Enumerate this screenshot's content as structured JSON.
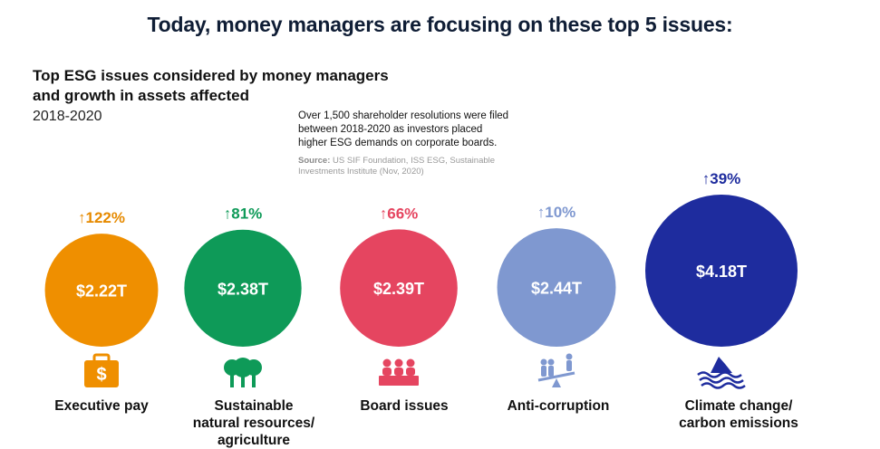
{
  "header": {
    "title": "Today, money managers are focusing on these top 5 issues:",
    "subtitle_line1": "Top ESG issues considered by money managers",
    "subtitle_line2": "and growth in assets affected",
    "years": "2018-2020",
    "note_line1": "Over 1,500 shareholder resolutions were filed",
    "note_line2": "between 2018-2020 as investors placed",
    "note_line3": "higher ESG demands on corporate boards.",
    "source_label": "Source:",
    "source_text": "US SIF Foundation, ISS ESG, Sustainable Investments Institute (Nov, 2020)"
  },
  "chart_data": {
    "type": "bubble",
    "title": "Top ESG issues considered by money managers and growth in assets affected",
    "period": "2018-2020",
    "unit": "assets affected (USD trillions)",
    "categories": [
      "Executive pay",
      "Sustainable natural resources/ agriculture",
      "Board issues",
      "Anti-corruption",
      "Climate change/ carbon emissions"
    ],
    "values": [
      2.22,
      2.38,
      2.39,
      2.44,
      4.18
    ],
    "value_labels": [
      "$2.22T",
      "$2.38T",
      "$2.39T",
      "$2.44T",
      "$4.18T"
    ],
    "growth": [
      "↑122%",
      "↑81%",
      "↑66%",
      "↑10%",
      "↑39%"
    ],
    "colors": [
      "#EF8F00",
      "#0E9A58",
      "#E54560",
      "#7F98D0",
      "#1E2C9E"
    ],
    "growth_colors": [
      "#E68A00",
      "#0E9A58",
      "#E54560",
      "#7F98D0",
      "#1E2C9E"
    ],
    "icons": [
      "briefcase-dollar-icon",
      "trees-icon",
      "board-members-icon",
      "scales-people-icon",
      "iceberg-waves-icon"
    ]
  },
  "labels": [
    {
      "line1": "Executive pay",
      "line2": "",
      "line3": ""
    },
    {
      "line1": "Sustainable",
      "line2": "natural resources/",
      "line3": "agriculture"
    },
    {
      "line1": "Board issues",
      "line2": "",
      "line3": ""
    },
    {
      "line1": "Anti-corruption",
      "line2": "",
      "line3": ""
    },
    {
      "line1": "Climate change/",
      "line2": "carbon emissions",
      "line3": ""
    }
  ]
}
